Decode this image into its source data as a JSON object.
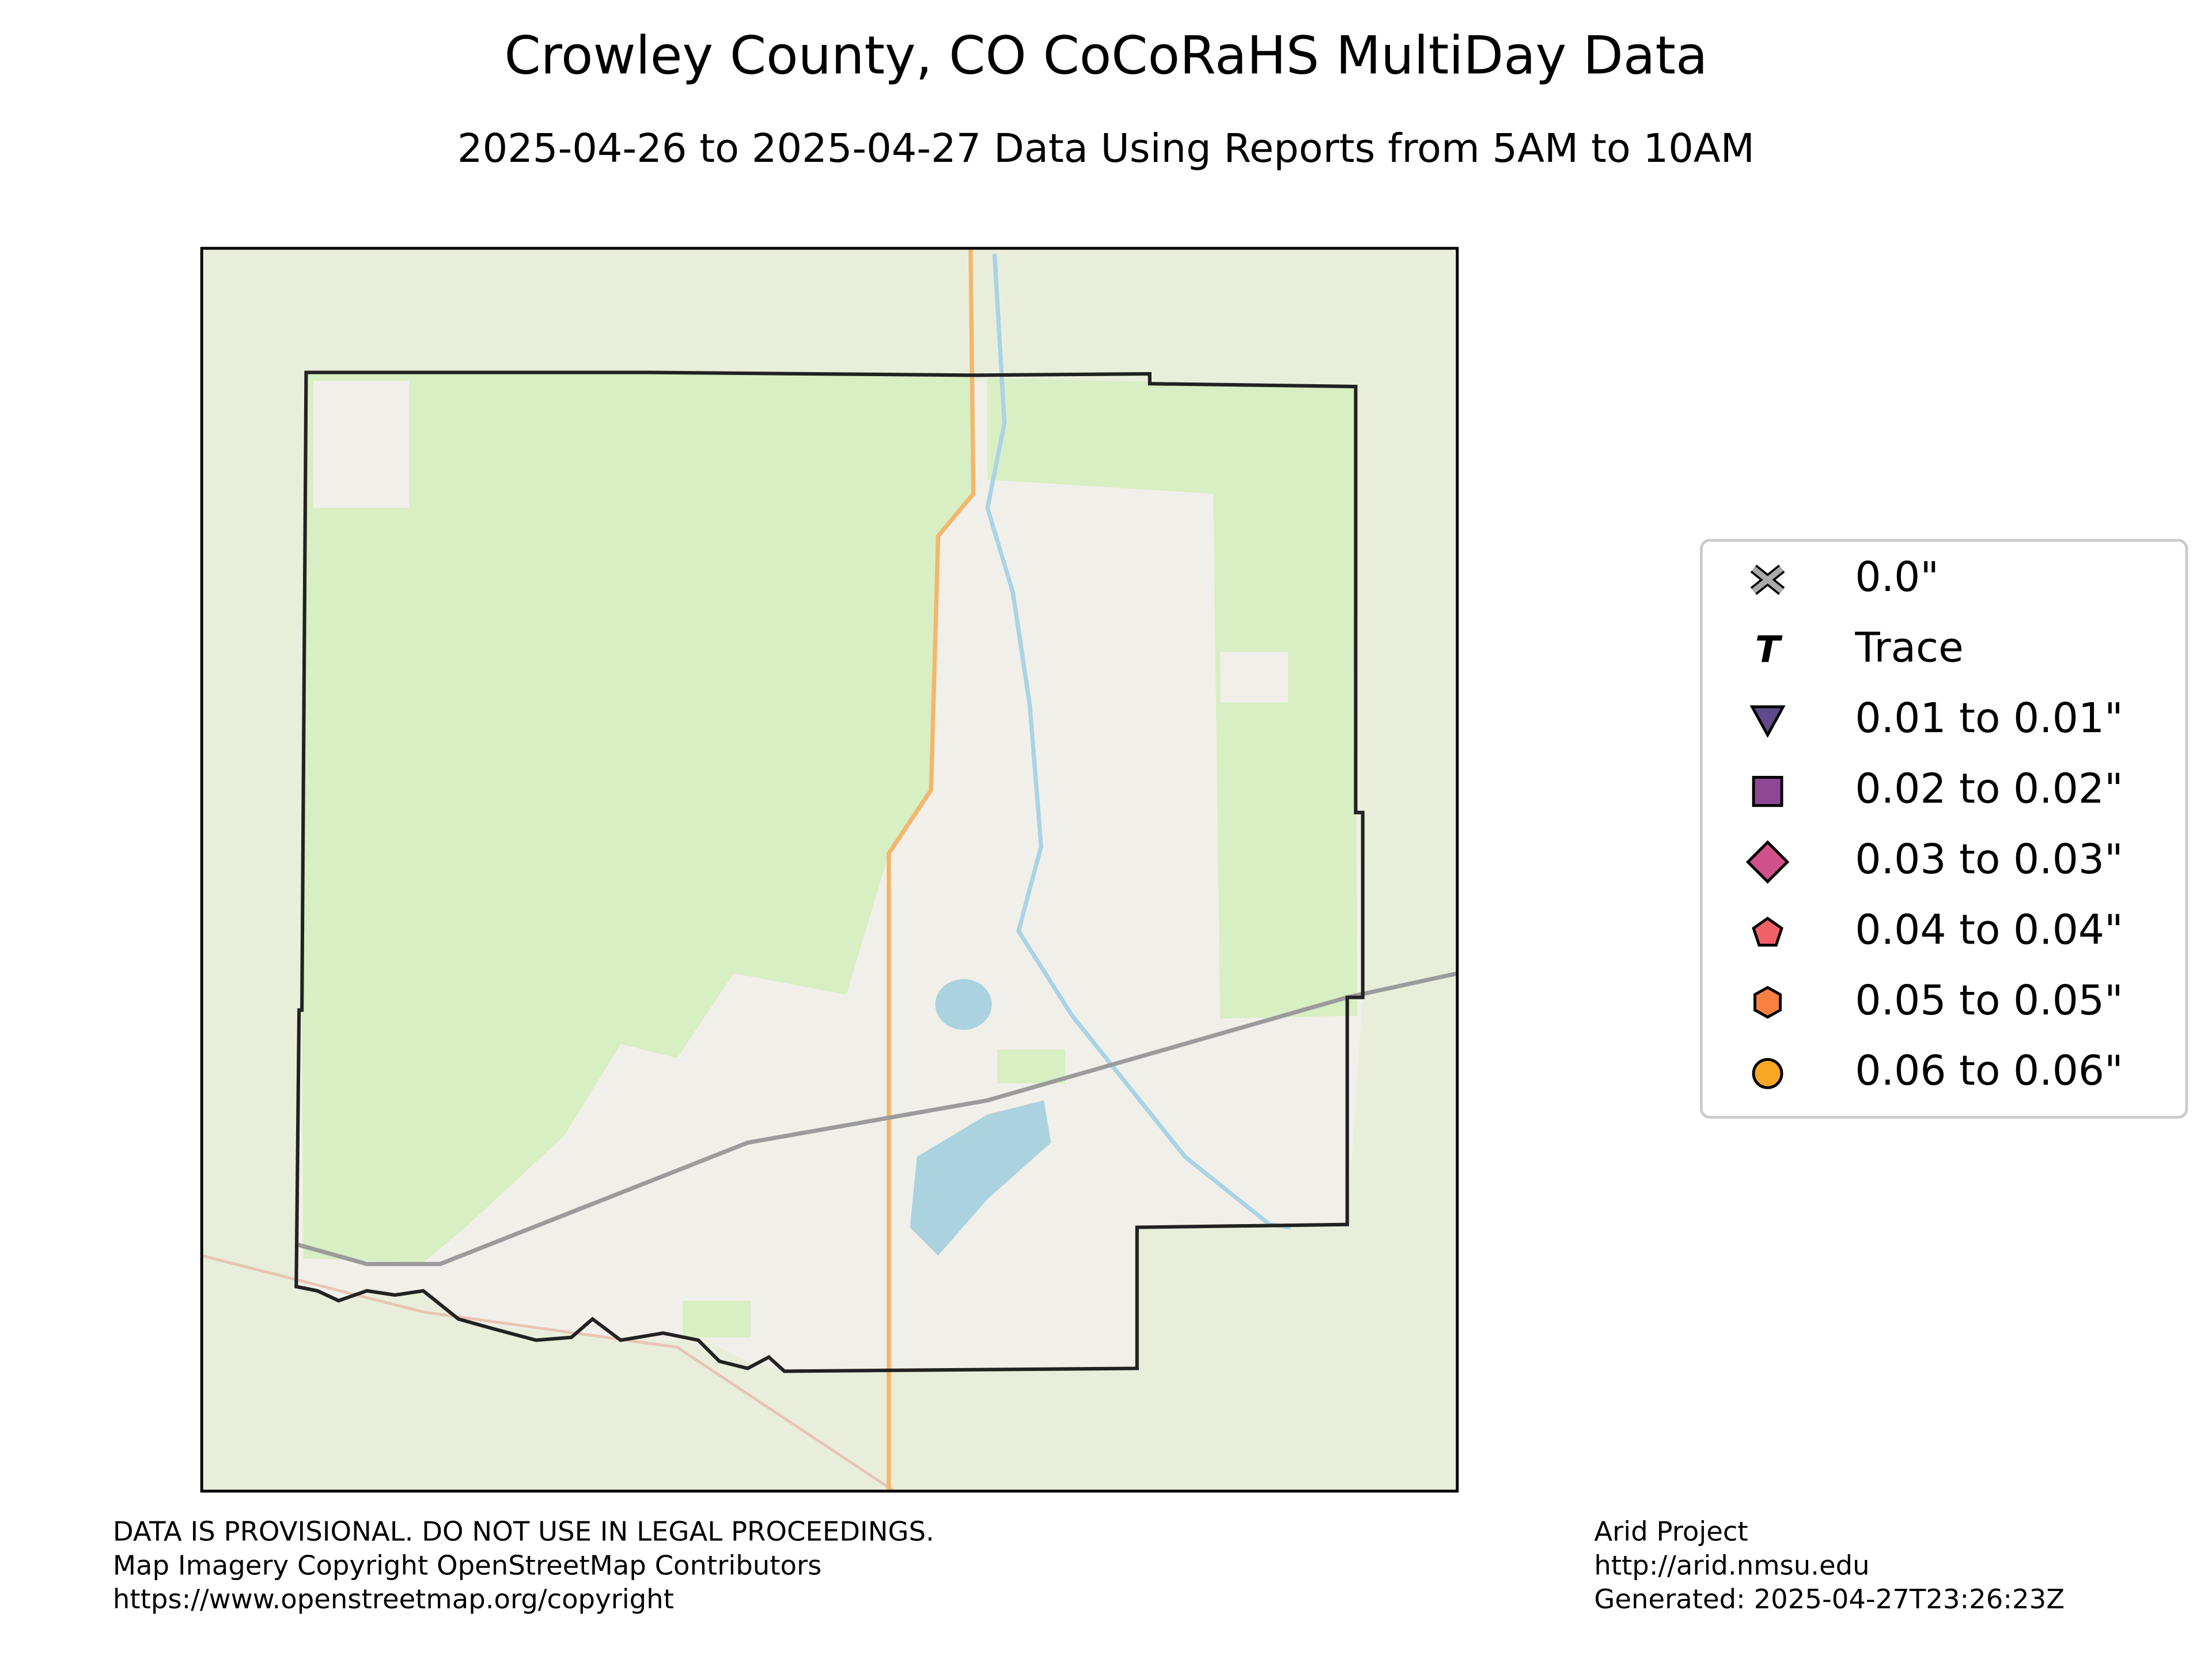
{
  "title": "Crowley County, CO CoCoRaHS MultiDay Data",
  "subtitle": "2025-04-26 to 2025-04-27 Data Using Reports from 5AM to 10AM",
  "legend": [
    "0.0\"",
    "Trace",
    "0.01 to 0.01\"",
    "0.02 to 0.02\"",
    "0.03 to 0.03\"",
    "0.04 to 0.04\"",
    "0.05 to 0.05\"",
    "0.06 to 0.06\""
  ],
  "footer_left": [
    "DATA IS PROVISIONAL. DO NOT USE IN LEGAL PROCEEDINGS.",
    "Map Imagery Copyright OpenStreetMap Contributors",
    "https://www.openstreetmap.org/copyright"
  ],
  "footer_right": [
    "Arid Project",
    "http://arid.nmsu.edu",
    "Generated: 2025-04-27T23:26:23Z"
  ]
}
